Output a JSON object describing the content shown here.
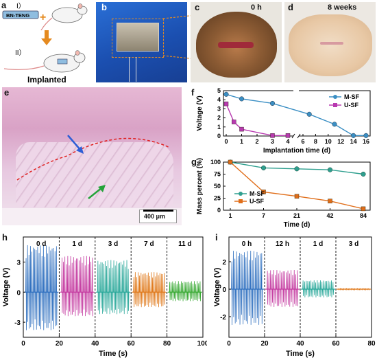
{
  "panels": {
    "a": {
      "label": "a",
      "step1": "I）",
      "step2": "II）",
      "device": "BN-TENG",
      "caption": "Implanted"
    },
    "b": {
      "label": "b"
    },
    "c": {
      "label": "c",
      "time": "0 h"
    },
    "d": {
      "label": "d",
      "time": "8 weeks"
    },
    "e": {
      "label": "e",
      "scale_bar": "400 μm"
    },
    "f": {
      "label": "f"
    },
    "g": {
      "label": "g"
    },
    "h": {
      "label": "h"
    },
    "i": {
      "label": "i"
    }
  },
  "colors": {
    "msf": "#3b8fc4",
    "usf": "#b83ab0",
    "gmsf": "#2f9f8f",
    "gusf": "#e06e1a",
    "h_series": [
      "#2e6fbf",
      "#c43aa0",
      "#2aa89a",
      "#e07a1c",
      "#3aaa35"
    ],
    "i_series": [
      "#2e6fbf",
      "#c43aa0",
      "#2aa89a",
      "#e07a1c"
    ]
  },
  "chart_data": [
    {
      "id": "f",
      "type": "line",
      "title": "",
      "xlabel": "Implantation time (d)",
      "ylabel": "Voltage (V)",
      "xticks_left": [
        0,
        1,
        2,
        3,
        4
      ],
      "xticks_right": [
        6,
        8,
        10,
        12,
        14,
        16
      ],
      "yticks": [
        0,
        1,
        2,
        3,
        4,
        5
      ],
      "ylim": [
        0,
        5
      ],
      "axis_break": "between 4 and 6",
      "legend": "top-right",
      "series": [
        {
          "name": "M-SF",
          "x": [
            0,
            1,
            3,
            7,
            11,
            14,
            16
          ],
          "y": [
            4.6,
            4.1,
            3.6,
            2.4,
            1.3,
            0.05,
            0.05
          ]
        },
        {
          "name": "U-SF",
          "x": [
            0,
            0.5,
            1,
            3,
            4
          ],
          "y": [
            3.55,
            1.55,
            0.75,
            0.05,
            0.05
          ]
        }
      ]
    },
    {
      "id": "g",
      "type": "line",
      "title": "",
      "xlabel": "Time (d)",
      "ylabel": "Mass percent (%)",
      "categories": [
        "1",
        "7",
        "21",
        "42",
        "84"
      ],
      "yticks": [
        0,
        25,
        50,
        75,
        100
      ],
      "ylim": [
        0,
        100
      ],
      "legend": "bottom-left",
      "series": [
        {
          "name": "M-SF",
          "values": [
            100,
            88,
            86,
            84,
            75
          ]
        },
        {
          "name": "U-SF",
          "values": [
            100,
            38,
            29,
            19,
            3
          ]
        }
      ]
    },
    {
      "id": "h",
      "type": "line",
      "title": "",
      "xlabel": "Time (s)",
      "ylabel": "Voltage (V)",
      "xticks": [
        0,
        20,
        40,
        60,
        80,
        100
      ],
      "yticks": [
        -3,
        0,
        3
      ],
      "ylim": [
        -4.5,
        5.5
      ],
      "segment_labels": [
        "0 d",
        "1 d",
        "3 d",
        "7 d",
        "11 d"
      ],
      "segments": [
        {
          "x": [
            0,
            20
          ],
          "pos_amplitude": 4.7,
          "neg_amplitude": -3.8
        },
        {
          "x": [
            20,
            40
          ],
          "pos_amplitude": 3.6,
          "neg_amplitude": -2.4
        },
        {
          "x": [
            40,
            60
          ],
          "pos_amplitude": 3.2,
          "neg_amplitude": -2.2
        },
        {
          "x": [
            60,
            80
          ],
          "pos_amplitude": 2.0,
          "neg_amplitude": -1.5
        },
        {
          "x": [
            80,
            100
          ],
          "pos_amplitude": 1.1,
          "neg_amplitude": -0.9
        }
      ]
    },
    {
      "id": "i",
      "type": "line",
      "title": "",
      "xlabel": "Time (s)",
      "ylabel": "Voltage (V)",
      "xticks": [
        0,
        20,
        40,
        60,
        80
      ],
      "yticks": [
        -2,
        0,
        2
      ],
      "ylim": [
        -3.5,
        3.8
      ],
      "segment_labels": [
        "0 h",
        "12 h",
        "1 d",
        "3 d"
      ],
      "segments": [
        {
          "x": [
            0,
            20
          ],
          "pos_amplitude": 2.8,
          "neg_amplitude": -2.6
        },
        {
          "x": [
            20,
            40
          ],
          "pos_amplitude": 1.4,
          "neg_amplitude": -1.3
        },
        {
          "x": [
            40,
            60
          ],
          "pos_amplitude": 0.65,
          "neg_amplitude": -0.6
        },
        {
          "x": [
            60,
            80
          ],
          "pos_amplitude": 0.05,
          "neg_amplitude": -0.05
        }
      ]
    }
  ]
}
